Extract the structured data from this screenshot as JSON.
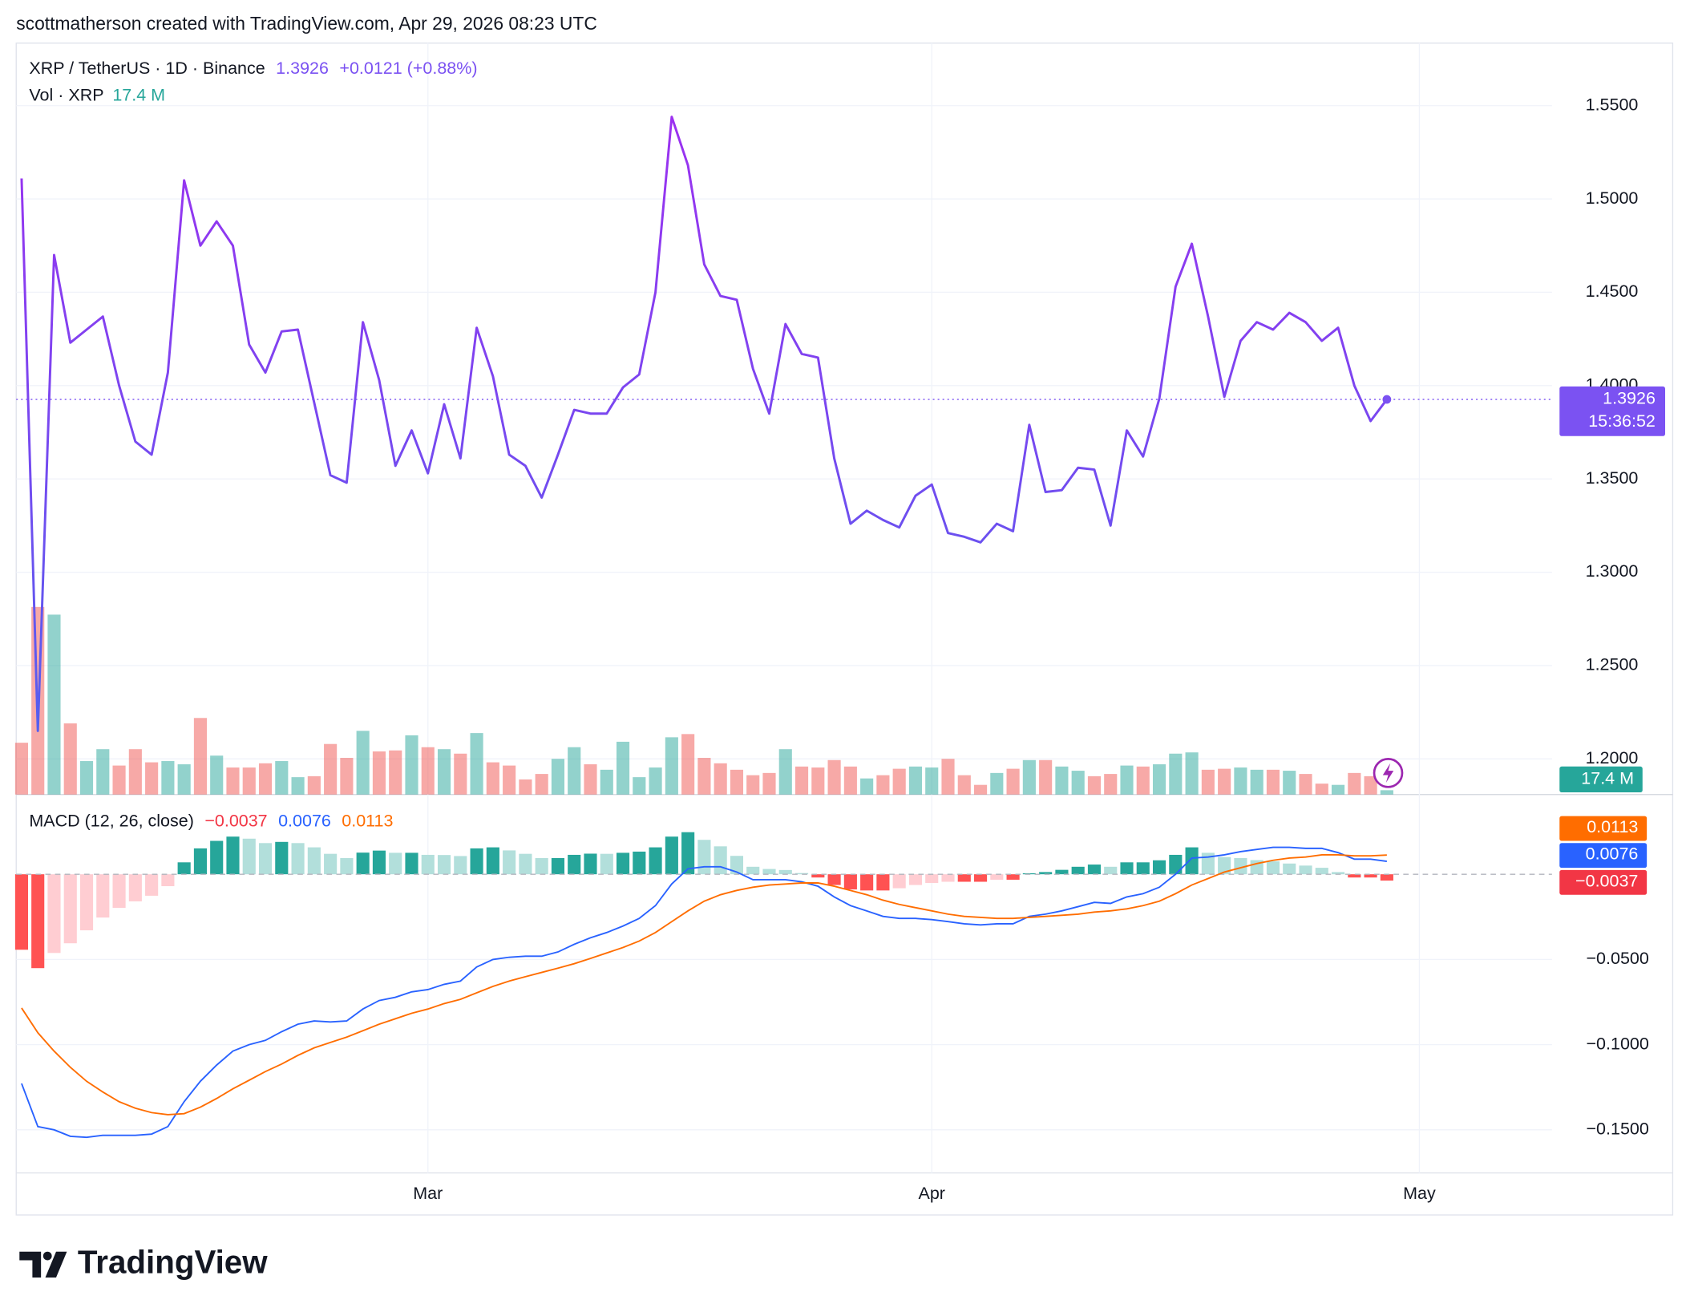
{
  "caption": "scottmatherson created with TradingView.com, Apr 29, 2026 08:23 UTC",
  "brand": "TradingView",
  "chart_data": [
    {
      "type": "line",
      "title": "XRP / TetherUS · 1D · Binance",
      "change": "+0.0121 (+0.88%)",
      "countdown": "15:36:52",
      "line_gradient": [
        "#a42bf0",
        "#4e63ef"
      ],
      "color": "#7b52f2",
      "grid": true,
      "ylim": [
        1.1809,
        1.5835
      ],
      "yticks": [
        {
          "value": 1.2,
          "label": "1.2000"
        },
        {
          "value": 1.25,
          "label": "1.2500"
        },
        {
          "value": 1.3,
          "label": "1.3000"
        },
        {
          "value": 1.35,
          "label": "1.3500"
        },
        {
          "value": 1.4,
          "label": "1.4000"
        },
        {
          "value": 1.45,
          "label": "1.4500"
        },
        {
          "value": 1.5,
          "label": "1.5000"
        },
        {
          "value": 1.55,
          "label": "1.5500"
        }
      ],
      "values": [
        1.511,
        1.215,
        1.47,
        1.423,
        1.43,
        1.437,
        1.4,
        1.37,
        1.363,
        1.407,
        1.51,
        1.475,
        1.488,
        1.475,
        1.422,
        1.407,
        1.429,
        1.43,
        1.391,
        1.352,
        1.348,
        1.434,
        1.403,
        1.357,
        1.376,
        1.353,
        1.39,
        1.361,
        1.431,
        1.405,
        1.363,
        1.357,
        1.34,
        1.363,
        1.387,
        1.385,
        1.385,
        1.399,
        1.406,
        1.45,
        1.544,
        1.518,
        1.465,
        1.448,
        1.446,
        1.409,
        1.385,
        1.433,
        1.417,
        1.415,
        1.361,
        1.326,
        1.333,
        1.328,
        1.324,
        1.341,
        1.347,
        1.321,
        1.319,
        1.316,
        1.326,
        1.322,
        1.379,
        1.343,
        1.344,
        1.356,
        1.355,
        1.325,
        1.376,
        1.362,
        1.393,
        1.453,
        1.476,
        1.437,
        1.394,
        1.424,
        1.434,
        1.43,
        1.439,
        1.434,
        1.424,
        1.431,
        1.4,
        1.381,
        1.3926
      ]
    },
    {
      "type": "bar",
      "title": "Vol · XRP",
      "up_color": "#26a69a",
      "down_color": "#ef5350",
      "values": [
        209,
        757,
        726,
        287,
        135,
        183,
        117,
        183,
        130,
        135,
        122,
        309,
        157,
        109,
        109,
        126,
        135,
        70,
        74,
        204,
        148,
        257,
        174,
        178,
        239,
        191,
        183,
        165,
        248,
        130,
        117,
        61,
        83,
        144,
        191,
        122,
        100,
        213,
        70,
        109,
        231,
        244,
        148,
        126,
        100,
        78,
        87,
        183,
        113,
        109,
        139,
        113,
        65,
        78,
        104,
        113,
        109,
        144,
        78,
        39,
        87,
        104,
        139,
        139,
        113,
        96,
        74,
        83,
        117,
        113,
        122,
        165,
        170,
        100,
        104,
        109,
        100,
        100,
        96,
        83,
        44,
        39,
        87,
        74,
        17.4
      ],
      "value_labels": [
        null,
        null,
        null,
        null,
        null,
        null,
        null,
        null,
        null,
        null,
        null,
        null,
        null,
        null,
        null,
        null,
        null,
        null,
        null,
        null,
        null,
        null,
        null,
        null,
        null,
        null,
        null,
        null,
        null,
        null,
        null,
        null,
        null,
        null,
        null,
        null,
        null,
        null,
        null,
        null,
        null,
        null,
        null,
        null,
        null,
        null,
        null,
        null,
        null,
        null,
        null,
        null,
        null,
        null,
        null,
        null,
        null,
        null,
        null,
        null,
        null,
        null,
        null,
        null,
        null,
        null,
        null,
        null,
        null,
        null,
        null,
        null,
        null,
        null,
        null,
        null,
        null,
        null,
        null,
        null,
        null,
        null,
        null,
        null,
        "17.4 M"
      ]
    },
    {
      "type": "macd",
      "title": "MACD (12, 26, close)",
      "grid": true,
      "zero_line": true,
      "xlim": [
        -0.33,
        94.16
      ],
      "xticks": [
        {
          "value": 25,
          "label": "Mar"
        },
        {
          "value": 56,
          "label": "Apr"
        },
        {
          "value": 86,
          "label": "May"
        }
      ],
      "ylim": [
        -0.1753,
        0.0468
      ],
      "yticks": [
        {
          "value": -0.15,
          "label": "−0.1500"
        },
        {
          "value": -0.1,
          "label": "−0.1000"
        },
        {
          "value": -0.05,
          "label": "−0.0500"
        }
      ],
      "series": [
        {
          "color": [
            "#26a69a",
            "#b2dfdb",
            "#ff5252",
            "#ffcdd2"
          ],
          "values": [
            -0.0443,
            -0.0551,
            -0.0462,
            -0.0405,
            -0.0329,
            -0.0254,
            -0.0197,
            -0.0159,
            -0.0126,
            -0.007,
            0.007,
            0.0152,
            0.0196,
            0.0221,
            0.0209,
            0.0183,
            0.019,
            0.0183,
            0.0158,
            0.012,
            0.0095,
            0.0127,
            0.0139,
            0.0126,
            0.0126,
            0.0114,
            0.0113,
            0.0107,
            0.0152,
            0.0158,
            0.014,
            0.012,
            0.0095,
            0.0095,
            0.0114,
            0.0121,
            0.012,
            0.0126,
            0.0133,
            0.0158,
            0.0221,
            0.0247,
            0.0202,
            0.0164,
            0.0108,
            0.0044,
            0.0031,
            0.0025,
            0.0007,
            -0.0019,
            -0.0063,
            -0.0089,
            -0.0095,
            -0.0095,
            -0.0082,
            -0.0063,
            -0.0051,
            -0.0044,
            -0.0044,
            -0.0044,
            -0.0032,
            -0.0032,
            0.0006,
            0.0013,
            0.0026,
            0.0044,
            0.0057,
            0.0044,
            0.007,
            0.007,
            0.0082,
            0.0114,
            0.0158,
            0.0126,
            0.0101,
            0.0095,
            0.0083,
            0.0076,
            0.0063,
            0.0051,
            0.0038,
            0.0013,
            -0.0019,
            -0.0019,
            -0.0037
          ],
          "value_labels": [
            null,
            null,
            null,
            null,
            null,
            null,
            null,
            null,
            null,
            null,
            null,
            null,
            null,
            null,
            null,
            null,
            null,
            null,
            null,
            null,
            null,
            null,
            null,
            null,
            null,
            null,
            null,
            null,
            null,
            null,
            null,
            null,
            null,
            null,
            null,
            null,
            null,
            null,
            null,
            null,
            null,
            null,
            null,
            null,
            null,
            null,
            null,
            null,
            null,
            null,
            null,
            null,
            null,
            null,
            null,
            null,
            null,
            null,
            null,
            null,
            null,
            null,
            null,
            null,
            null,
            null,
            null,
            null,
            null,
            null,
            null,
            null,
            null,
            null,
            null,
            null,
            null,
            null,
            null,
            null,
            null,
            null,
            null,
            null,
            "−0.0037"
          ]
        },
        {
          "color": "#2962ff",
          "values": [
            -0.1228,
            -0.1481,
            -0.15,
            -0.1538,
            -0.1544,
            -0.1532,
            -0.1532,
            -0.1532,
            -0.1525,
            -0.1481,
            -0.1335,
            -0.1215,
            -0.112,
            -0.1038,
            -0.1,
            -0.0975,
            -0.0924,
            -0.088,
            -0.0861,
            -0.0867,
            -0.0861,
            -0.0791,
            -0.0741,
            -0.0722,
            -0.069,
            -0.0677,
            -0.0646,
            -0.0627,
            -0.0544,
            -0.05,
            -0.0487,
            -0.0481,
            -0.0481,
            -0.0456,
            -0.0411,
            -0.0373,
            -0.0342,
            -0.0304,
            -0.0259,
            -0.0184,
            -0.0057,
            0.0032,
            0.0044,
            0.0044,
            0.0013,
            -0.0032,
            -0.0032,
            -0.0032,
            -0.0044,
            -0.007,
            -0.0133,
            -0.0184,
            -0.0215,
            -0.0247,
            -0.0259,
            -0.0259,
            -0.0266,
            -0.0278,
            -0.0291,
            -0.0297,
            -0.0291,
            -0.0291,
            -0.0247,
            -0.0234,
            -0.0215,
            -0.019,
            -0.0165,
            -0.0171,
            -0.0133,
            -0.0114,
            -0.0076,
            0,
            0.0095,
            0.0101,
            0.0114,
            0.0133,
            0.0146,
            0.0158,
            0.0158,
            0.0152,
            0.0152,
            0.0127,
            0.0089,
            0.0089,
            0.0076
          ]
        },
        {
          "color": "#ff6d00",
          "values": [
            -0.0785,
            -0.093,
            -0.1038,
            -0.1133,
            -0.1215,
            -0.1278,
            -0.1335,
            -0.1373,
            -0.1399,
            -0.1411,
            -0.1405,
            -0.1367,
            -0.1316,
            -0.1259,
            -0.1209,
            -0.1158,
            -0.1114,
            -0.1063,
            -0.1019,
            -0.0987,
            -0.0956,
            -0.0918,
            -0.088,
            -0.0848,
            -0.0816,
            -0.0791,
            -0.0759,
            -0.0734,
            -0.0696,
            -0.0658,
            -0.0627,
            -0.0601,
            -0.0576,
            -0.0551,
            -0.0525,
            -0.0494,
            -0.0462,
            -0.043,
            -0.0392,
            -0.0342,
            -0.0278,
            -0.0215,
            -0.0158,
            -0.012,
            -0.0095,
            -0.0076,
            -0.0063,
            -0.0057,
            -0.0051,
            -0.0051,
            -0.007,
            -0.0095,
            -0.012,
            -0.0152,
            -0.0177,
            -0.0196,
            -0.0215,
            -0.0234,
            -0.0247,
            -0.0253,
            -0.0259,
            -0.0259,
            -0.0253,
            -0.0247,
            -0.0241,
            -0.0234,
            -0.0222,
            -0.0215,
            -0.0203,
            -0.0184,
            -0.0158,
            -0.0114,
            -0.0063,
            -0.0025,
            0.0013,
            0.0038,
            0.0063,
            0.0082,
            0.0095,
            0.0101,
            0.0114,
            0.0114,
            0.0108,
            0.0108,
            0.0113
          ]
        }
      ]
    }
  ]
}
